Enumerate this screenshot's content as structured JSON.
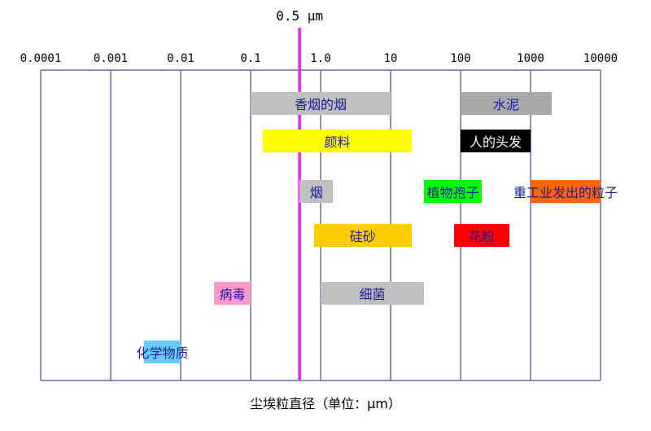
{
  "marker_label": "0.5 μm",
  "axis_title": "尘埃粒直径（单位：μm）",
  "chart_data": {
    "type": "range-bar",
    "scale": "log10",
    "xlabel": "尘埃粒直径（单位：μm）",
    "xlim": [
      0.0001,
      10000
    ],
    "ticks": [
      {
        "value": 0.0001,
        "label": "0.0001"
      },
      {
        "value": 0.001,
        "label": "0.001"
      },
      {
        "value": 0.01,
        "label": "0.01"
      },
      {
        "value": 0.1,
        "label": "0.1"
      },
      {
        "value": 1,
        "label": "1.0"
      },
      {
        "value": 10,
        "label": "10"
      },
      {
        "value": 100,
        "label": "100"
      },
      {
        "value": 1000,
        "label": "1000"
      },
      {
        "value": 10000,
        "label": "10000"
      }
    ],
    "marker": {
      "value": 0.5,
      "label": "0.5 μm",
      "color": "#ee22ee"
    },
    "items": [
      {
        "label": "香烟的烟",
        "min": 0.1,
        "max": 10,
        "row": 0,
        "bg": "#c0c0c0",
        "fg": "#1a1aa0"
      },
      {
        "label": "水泥",
        "min": 100,
        "max": 2000,
        "row": 0,
        "bg": "#a9a9a9",
        "fg": "#1a1aa0"
      },
      {
        "label": "颜料",
        "min": 0.15,
        "max": 20,
        "row": 1,
        "bg": "#ffff00",
        "fg": "#1a1aa0"
      },
      {
        "label": "人的头发",
        "min": 100,
        "max": 1000,
        "row": 1,
        "bg": "#000000",
        "fg": "#ffffff"
      },
      {
        "label": "烟",
        "min": 0.5,
        "max": 1.5,
        "row": 2,
        "bg": "#c0c0c0",
        "fg": "#1a1aa0"
      },
      {
        "label": "植物孢子",
        "min": 30,
        "max": 200,
        "row": 2,
        "bg": "#00ff00",
        "fg": "#1a1aa0"
      },
      {
        "label": "重工业发出的粒子",
        "min": 1000,
        "max": 10000,
        "row": 2,
        "bg": "#ff6600",
        "fg": "#1a1aa0"
      },
      {
        "label": "硅砂",
        "min": 0.8,
        "max": 20,
        "row": 3,
        "bg": "#ffcc00",
        "fg": "#1a1aa0"
      },
      {
        "label": "花粉",
        "min": 80,
        "max": 500,
        "row": 3,
        "bg": "#ff0000",
        "fg": "#1a1aa0"
      },
      {
        "label": "病毒",
        "min": 0.03,
        "max": 0.1,
        "row": 4,
        "bg": "#ff99cc",
        "fg": "#1a1aa0"
      },
      {
        "label": "细菌",
        "min": 1,
        "max": 30,
        "row": 4,
        "bg": "#c0c0c0",
        "fg": "#1a1aa0"
      },
      {
        "label": "化学物质",
        "min": 0.003,
        "max": 0.01,
        "row": 5,
        "bg": "#66ccff",
        "fg": "#1a1aa0"
      }
    ],
    "grid": true,
    "frame_color": "#6a6ab8"
  }
}
